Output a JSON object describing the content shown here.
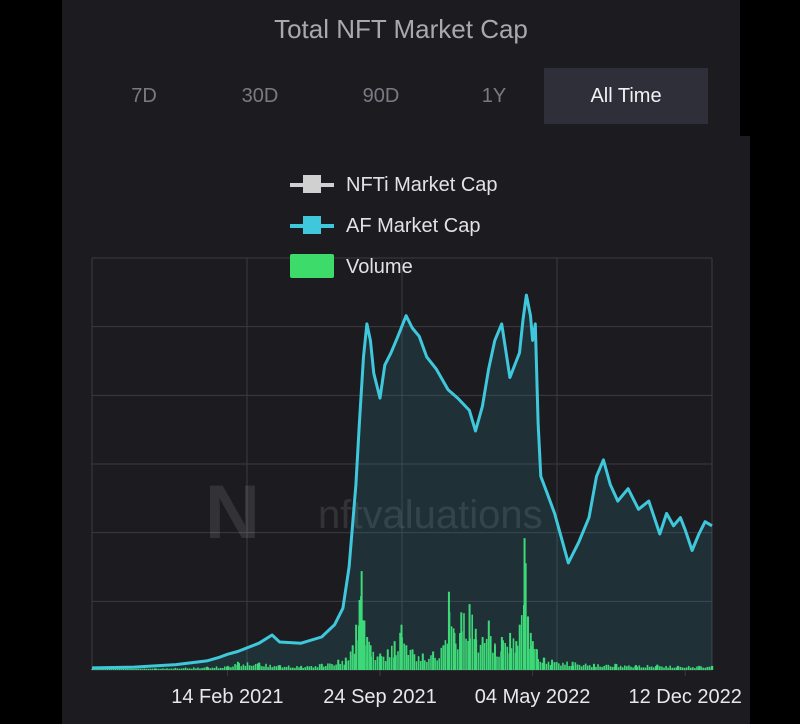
{
  "header": {
    "title": "Total NFT Market Cap"
  },
  "tabs": [
    {
      "label": "7D",
      "active": false
    },
    {
      "label": "30D",
      "active": false
    },
    {
      "label": "90D",
      "active": false
    },
    {
      "label": "1Y",
      "active": false
    },
    {
      "label": "All Time",
      "active": true
    }
  ],
  "watermark": "nftvaluations",
  "colors": {
    "background": "#000000",
    "panel": "#1c1c20",
    "active_tab": "#2e2f39",
    "nfti_series": "#d0d0d0",
    "af_series": "#3fc8dc",
    "volume_series": "#3ddc6a",
    "grid": "#3a3a40"
  },
  "chart_data": {
    "type": "line",
    "title": "",
    "xlabel": "",
    "ylabel": "",
    "x_range": [
      "2020-08-01",
      "2023-01-20"
    ],
    "x_ticks": [
      {
        "date": "2021-02-14",
        "label": "14 Feb 2021"
      },
      {
        "date": "2021-09-24",
        "label": "24 Sep 2021"
      },
      {
        "date": "2022-05-04",
        "label": "04 May 2022"
      },
      {
        "date": "2022-12-12",
        "label": "12 Dec 2022"
      }
    ],
    "ylim": [
      0,
      100
    ],
    "y_ticks_labeled": false,
    "grid": true,
    "legend_position": "top-center",
    "legend": [
      "NFTi Market Cap",
      "AF Market Cap",
      "Volume"
    ],
    "series": [
      {
        "name": "AF Market Cap",
        "kind": "line-area",
        "points": [
          [
            "2020-08-01",
            0.5
          ],
          [
            "2020-10-01",
            0.7
          ],
          [
            "2020-12-01",
            1.3
          ],
          [
            "2021-01-15",
            2.2
          ],
          [
            "2021-02-01",
            3.0
          ],
          [
            "2021-02-14",
            3.8
          ],
          [
            "2021-03-01",
            4.5
          ],
          [
            "2021-04-01",
            6.5
          ],
          [
            "2021-04-20",
            8.5
          ],
          [
            "2021-05-01",
            6.8
          ],
          [
            "2021-06-01",
            6.5
          ],
          [
            "2021-07-01",
            8.0
          ],
          [
            "2021-07-20",
            11.0
          ],
          [
            "2021-08-01",
            15.0
          ],
          [
            "2021-08-10",
            25.0
          ],
          [
            "2021-08-20",
            45.0
          ],
          [
            "2021-08-25",
            60.0
          ],
          [
            "2021-08-31",
            76.0
          ],
          [
            "2021-09-05",
            84.0
          ],
          [
            "2021-09-10",
            80.0
          ],
          [
            "2021-09-15",
            72.0
          ],
          [
            "2021-09-24",
            66.0
          ],
          [
            "2021-10-01",
            74.0
          ],
          [
            "2021-10-10",
            77.0
          ],
          [
            "2021-10-20",
            81.0
          ],
          [
            "2021-11-01",
            86.0
          ],
          [
            "2021-11-10",
            83.0
          ],
          [
            "2021-11-20",
            81.0
          ],
          [
            "2021-12-01",
            76.0
          ],
          [
            "2021-12-15",
            73.0
          ],
          [
            "2022-01-01",
            68.0
          ],
          [
            "2022-01-15",
            66.0
          ],
          [
            "2022-02-01",
            63.0
          ],
          [
            "2022-02-10",
            58.0
          ],
          [
            "2022-02-20",
            64.0
          ],
          [
            "2022-03-01",
            73.0
          ],
          [
            "2022-03-10",
            80.0
          ],
          [
            "2022-03-20",
            84.0
          ],
          [
            "2022-04-01",
            71.0
          ],
          [
            "2022-04-15",
            77.0
          ],
          [
            "2022-04-20",
            85.0
          ],
          [
            "2022-04-25",
            91.0
          ],
          [
            "2022-05-01",
            86.0
          ],
          [
            "2022-05-04",
            80.0
          ],
          [
            "2022-05-08",
            84.0
          ],
          [
            "2022-05-12",
            60.0
          ],
          [
            "2022-05-16",
            47.0
          ],
          [
            "2022-05-25",
            43.0
          ],
          [
            "2022-06-05",
            38.0
          ],
          [
            "2022-06-15",
            32.0
          ],
          [
            "2022-06-25",
            26.0
          ],
          [
            "2022-07-10",
            31.0
          ],
          [
            "2022-07-25",
            37.0
          ],
          [
            "2022-08-05",
            47.0
          ],
          [
            "2022-08-15",
            51.0
          ],
          [
            "2022-08-25",
            45.0
          ],
          [
            "2022-09-05",
            41.0
          ],
          [
            "2022-09-20",
            44.0
          ],
          [
            "2022-10-05",
            39.0
          ],
          [
            "2022-10-20",
            41.0
          ],
          [
            "2022-11-05",
            33.0
          ],
          [
            "2022-11-15",
            38.0
          ],
          [
            "2022-11-25",
            35.0
          ],
          [
            "2022-12-05",
            37.0
          ],
          [
            "2022-12-12",
            34.0
          ],
          [
            "2022-12-22",
            29.0
          ],
          [
            "2023-01-01",
            33.0
          ],
          [
            "2023-01-10",
            36.0
          ],
          [
            "2023-01-20",
            35.0
          ]
        ]
      },
      {
        "name": "Volume",
        "kind": "bars",
        "points": [
          [
            "2020-08-01",
            0.2
          ],
          [
            "2020-11-01",
            0.4
          ],
          [
            "2021-01-15",
            0.8
          ],
          [
            "2021-02-14",
            1.0
          ],
          [
            "2021-03-01",
            2.0
          ],
          [
            "2021-04-01",
            1.8
          ],
          [
            "2021-05-01",
            1.2
          ],
          [
            "2021-06-01",
            1.0
          ],
          [
            "2021-07-01",
            1.5
          ],
          [
            "2021-07-25",
            2.5
          ],
          [
            "2021-08-05",
            3.0
          ],
          [
            "2021-08-15",
            6.0
          ],
          [
            "2021-08-20",
            11.0
          ],
          [
            "2021-08-25",
            17.0
          ],
          [
            "2021-08-28",
            24.0
          ],
          [
            "2021-09-01",
            12.0
          ],
          [
            "2021-09-05",
            8.0
          ],
          [
            "2021-09-10",
            6.0
          ],
          [
            "2021-09-24",
            4.0
          ],
          [
            "2021-10-05",
            5.0
          ],
          [
            "2021-10-15",
            7.0
          ],
          [
            "2021-10-25",
            11.0
          ],
          [
            "2021-11-01",
            6.0
          ],
          [
            "2021-11-10",
            5.0
          ],
          [
            "2021-11-25",
            4.0
          ],
          [
            "2021-12-10",
            4.5
          ],
          [
            "2021-12-25",
            6.0
          ],
          [
            "2022-01-02",
            19.0
          ],
          [
            "2022-01-10",
            9.0
          ],
          [
            "2022-01-20",
            14.0
          ],
          [
            "2022-02-01",
            16.0
          ],
          [
            "2022-02-10",
            10.0
          ],
          [
            "2022-02-20",
            8.0
          ],
          [
            "2022-03-01",
            12.0
          ],
          [
            "2022-03-10",
            6.0
          ],
          [
            "2022-03-20",
            8.0
          ],
          [
            "2022-04-01",
            9.0
          ],
          [
            "2022-04-10",
            7.0
          ],
          [
            "2022-04-15",
            11.0
          ],
          [
            "2022-04-22",
            32.0
          ],
          [
            "2022-04-27",
            13.0
          ],
          [
            "2022-05-01",
            9.0
          ],
          [
            "2022-05-04",
            7.0
          ],
          [
            "2022-05-10",
            5.0
          ],
          [
            "2022-05-20",
            3.0
          ],
          [
            "2022-06-01",
            2.5
          ],
          [
            "2022-07-01",
            2.0
          ],
          [
            "2022-08-01",
            1.5
          ],
          [
            "2022-09-01",
            1.5
          ],
          [
            "2022-10-01",
            1.2
          ],
          [
            "2022-11-01",
            1.3
          ],
          [
            "2022-12-01",
            1.0
          ],
          [
            "2023-01-01",
            1.0
          ],
          [
            "2023-01-20",
            1.0
          ]
        ]
      }
    ]
  }
}
